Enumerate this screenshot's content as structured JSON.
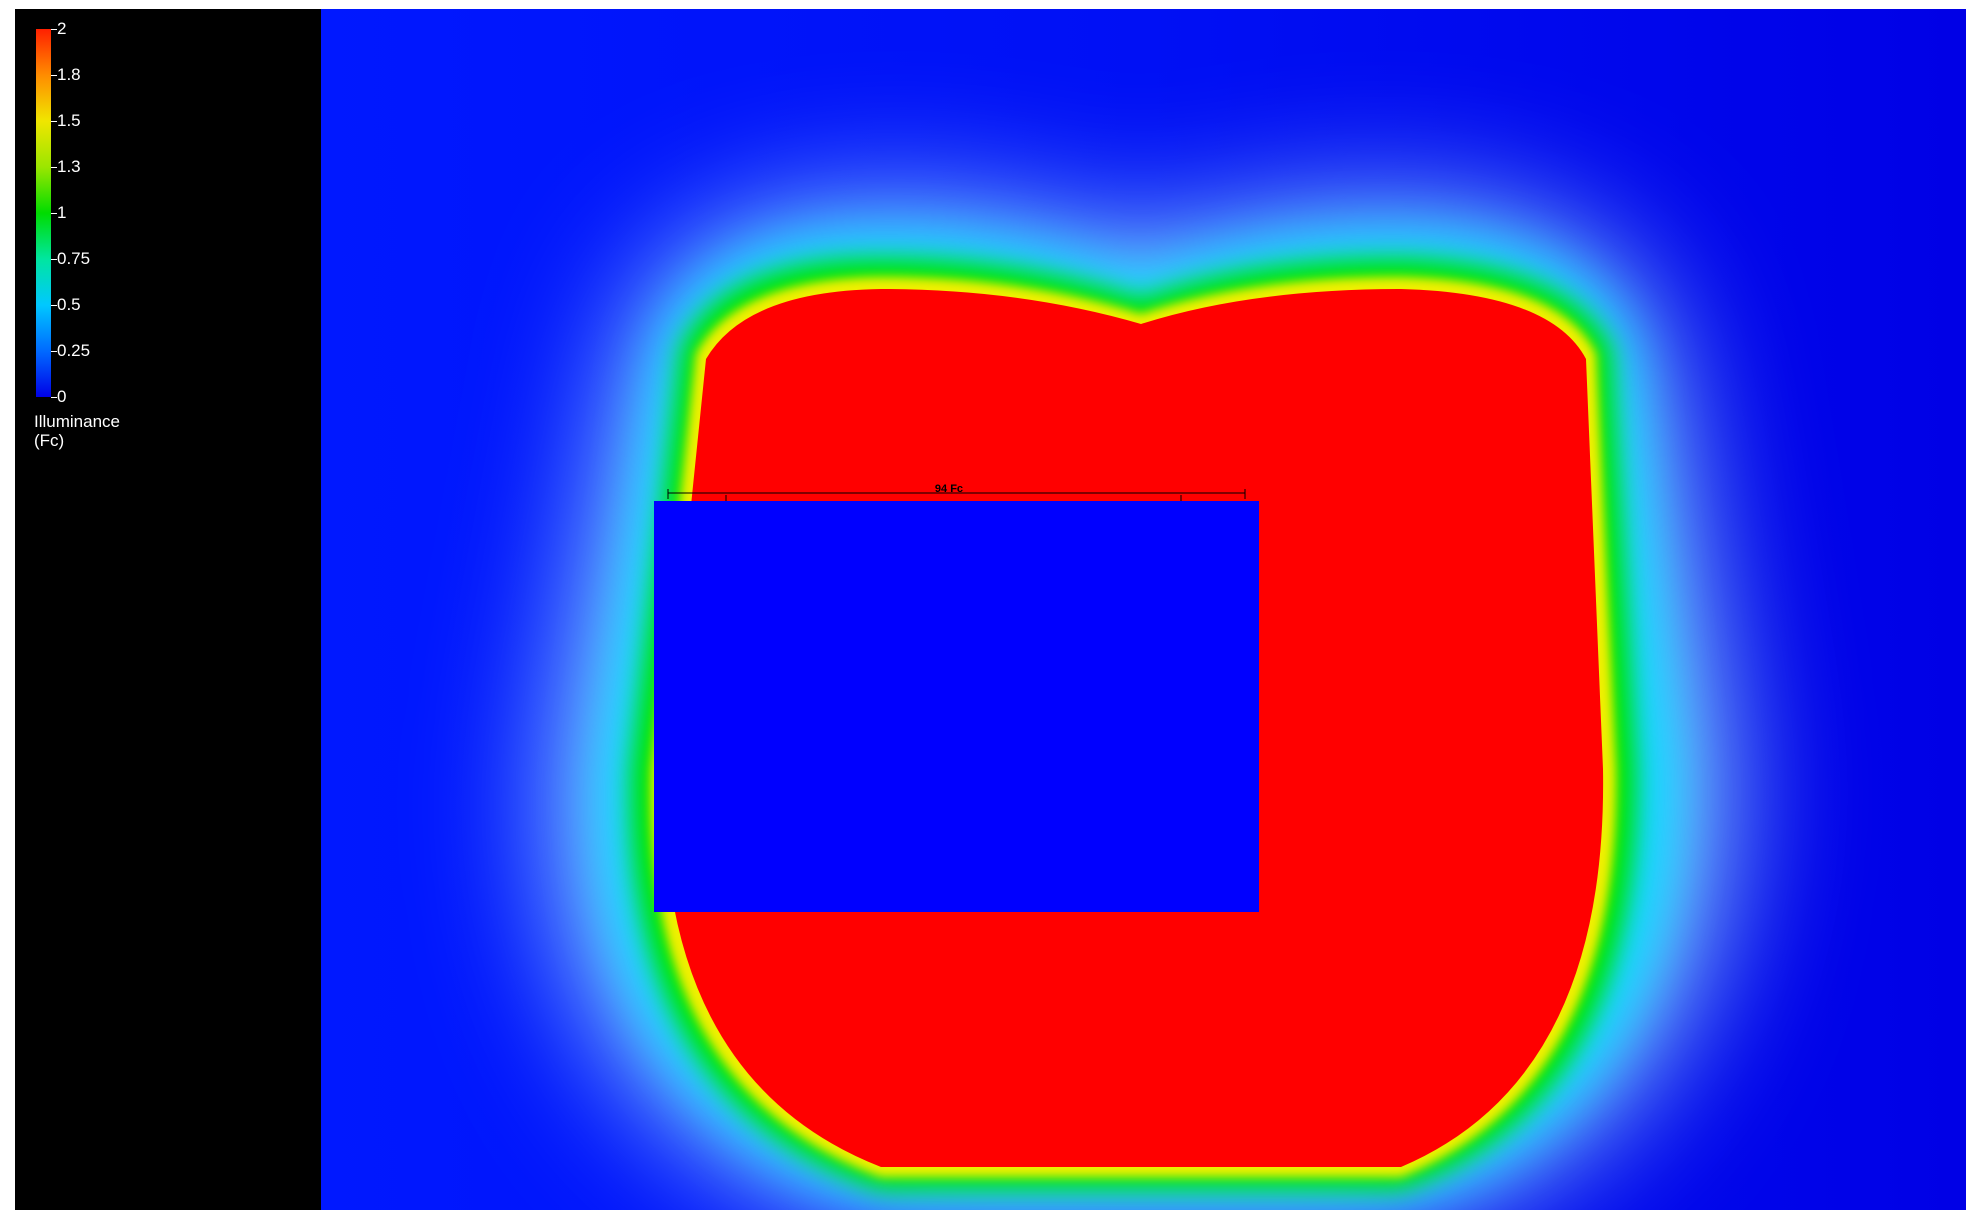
{
  "legend": {
    "title_line1": "Illuminance",
    "title_line2": "(Fc)",
    "ticks": [
      {
        "label": "2",
        "value": 2
      },
      {
        "label": "1.8",
        "value": 1.75
      },
      {
        "label": "1.5",
        "value": 1.5
      },
      {
        "label": "1.3",
        "value": 1.25
      },
      {
        "label": "1",
        "value": 1
      },
      {
        "label": "0.75",
        "value": 0.75
      },
      {
        "label": "0.5",
        "value": 0.5
      },
      {
        "label": "0.25",
        "value": 0.25
      },
      {
        "label": "0",
        "value": 0
      }
    ],
    "range": [
      0,
      2
    ]
  },
  "plan": {
    "dimension_label": "94 Fc",
    "colors": {
      "background_low": "#0000f0",
      "high": "#ff0000",
      "mid": "#00e600",
      "building": "#0000ff"
    }
  }
}
